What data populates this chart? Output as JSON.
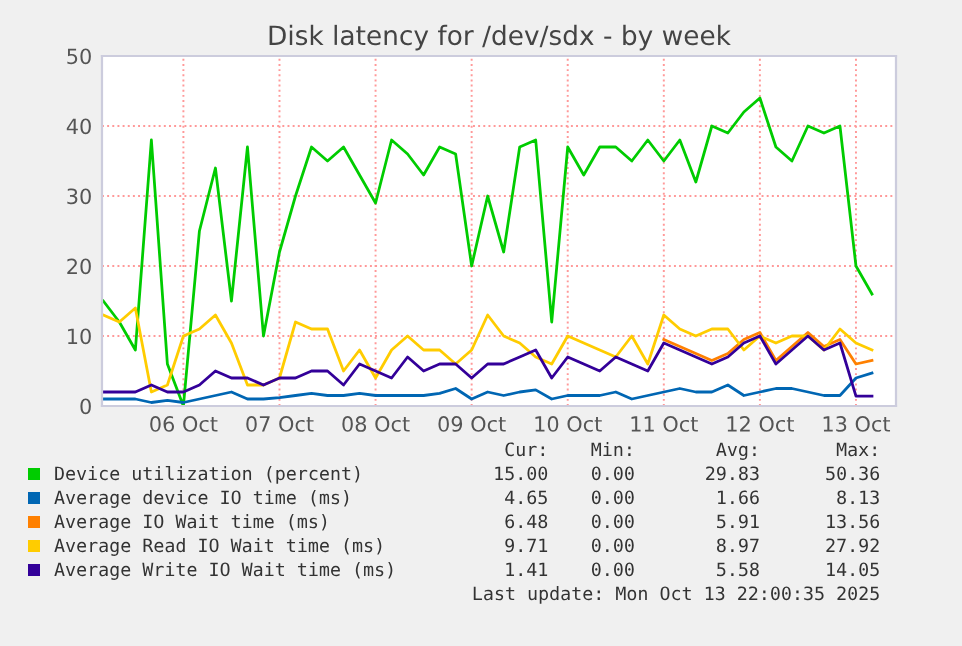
{
  "chart_data": {
    "type": "line",
    "title": "Disk latency for /dev/sdx - by week",
    "x": [
      "2025-10-05T16:00",
      "2025-10-05T20:00",
      "2025-10-06T00:00",
      "2025-10-06T04:00",
      "2025-10-06T08:00",
      "2025-10-06T12:00",
      "2025-10-06T16:00",
      "2025-10-06T20:00",
      "2025-10-07T00:00",
      "2025-10-07T04:00",
      "2025-10-07T08:00",
      "2025-10-07T12:00",
      "2025-10-07T16:00",
      "2025-10-07T20:00",
      "2025-10-08T00:00",
      "2025-10-08T04:00",
      "2025-10-08T08:00",
      "2025-10-08T12:00",
      "2025-10-08T16:00",
      "2025-10-08T20:00",
      "2025-10-09T00:00",
      "2025-10-09T04:00",
      "2025-10-09T08:00",
      "2025-10-09T12:00",
      "2025-10-09T16:00",
      "2025-10-09T20:00",
      "2025-10-10T00:00",
      "2025-10-10T04:00",
      "2025-10-10T08:00",
      "2025-10-10T12:00",
      "2025-10-10T16:00",
      "2025-10-10T20:00",
      "2025-10-11T00:00",
      "2025-10-11T04:00",
      "2025-10-11T08:00",
      "2025-10-11T12:00",
      "2025-10-11T16:00",
      "2025-10-11T20:00",
      "2025-10-12T00:00",
      "2025-10-12T04:00",
      "2025-10-12T08:00",
      "2025-10-12T12:00",
      "2025-10-12T16:00",
      "2025-10-12T20:00",
      "2025-10-13T00:00",
      "2025-10-13T04:00",
      "2025-10-13T08:00",
      "2025-10-13T12:00",
      "2025-10-13T16:00"
    ],
    "series": [
      {
        "name": "Device utilization (percent)",
        "color": "#00cc00",
        "values": [
          15,
          12,
          8,
          38,
          6,
          0,
          25,
          34,
          15,
          37,
          10,
          22,
          30,
          37,
          35,
          37,
          33,
          29,
          38,
          36,
          33,
          37,
          36,
          20,
          30,
          22,
          37,
          38,
          12,
          37,
          33,
          37,
          37,
          35,
          38,
          35,
          38,
          32,
          40,
          39,
          42,
          44,
          37,
          35,
          40,
          39,
          40,
          20,
          16
        ]
      },
      {
        "name": "Average device IO time (ms)",
        "color": "#0066b3",
        "values": [
          1,
          1,
          1,
          0.5,
          0.8,
          0.5,
          1,
          1.5,
          2,
          1,
          1,
          1.2,
          1.5,
          1.8,
          1.5,
          1.5,
          1.8,
          1.5,
          1.5,
          1.5,
          1.5,
          1.8,
          2.5,
          1,
          2,
          1.5,
          2,
          2.3,
          1,
          1.5,
          1.5,
          1.5,
          2,
          1,
          1.5,
          2,
          2.5,
          2,
          2,
          3,
          1.5,
          2,
          2.5,
          2.5,
          2,
          1.5,
          1.5,
          4,
          4.7
        ]
      },
      {
        "name": "Average IO Wait time (ms)",
        "color": "#ff8000",
        "values": [
          null,
          null,
          null,
          null,
          null,
          null,
          null,
          null,
          null,
          null,
          null,
          null,
          null,
          null,
          null,
          null,
          null,
          null,
          null,
          null,
          null,
          null,
          null,
          null,
          null,
          null,
          null,
          null,
          null,
          null,
          null,
          null,
          null,
          null,
          null,
          9.5,
          8.5,
          7.5,
          6.5,
          7.5,
          9.5,
          10.5,
          6.5,
          8.5,
          10.5,
          8.5,
          9.5,
          6,
          6.5
        ]
      },
      {
        "name": "Average Read IO Wait time (ms)",
        "color": "#ffcc00",
        "values": [
          13,
          12,
          14,
          2,
          3,
          10,
          11,
          13,
          9,
          3,
          3,
          4,
          12,
          11,
          11,
          5,
          8,
          4,
          8,
          10,
          8,
          8,
          6,
          8,
          13,
          10,
          9,
          7,
          6,
          10,
          9,
          8,
          7,
          10,
          6,
          13,
          11,
          10,
          11,
          11,
          8,
          10,
          9,
          10,
          10,
          8,
          11,
          9,
          8
        ]
      },
      {
        "name": "Average Write IO Wait time (ms)",
        "color": "#330099",
        "values": [
          2,
          2,
          2,
          3,
          2,
          2,
          3,
          5,
          4,
          4,
          3,
          4,
          4,
          5,
          5,
          3,
          6,
          5,
          4,
          7,
          5,
          6,
          6,
          4,
          6,
          6,
          7,
          8,
          4,
          7,
          6,
          5,
          7,
          6,
          5,
          9,
          8,
          7,
          6,
          7,
          9,
          10,
          6,
          8,
          10,
          8,
          9,
          1.4,
          1.4
        ]
      }
    ],
    "xlim": [
      "2025-10-05T15:40",
      "2025-10-13T22:00"
    ],
    "xticks": [
      {
        "value": "2025-10-06T12:00",
        "label": "06 Oct"
      },
      {
        "value": "2025-10-07T12:00",
        "label": "07 Oct"
      },
      {
        "value": "2025-10-08T12:00",
        "label": "08 Oct"
      },
      {
        "value": "2025-10-09T12:00",
        "label": "09 Oct"
      },
      {
        "value": "2025-10-10T12:00",
        "label": "10 Oct"
      },
      {
        "value": "2025-10-11T12:00",
        "label": "11 Oct"
      },
      {
        "value": "2025-10-12T12:00",
        "label": "12 Oct"
      },
      {
        "value": "2025-10-13T12:00",
        "label": "13 Oct"
      }
    ],
    "ylim": [
      0,
      50
    ],
    "yticks": [
      0,
      10,
      20,
      30,
      40,
      50
    ],
    "grid": true,
    "legend": "bottom",
    "marker": "none",
    "line_style": "solid",
    "annotations": [
      "Cur:",
      "Min:",
      "Avg:",
      "Max:",
      "15.00",
      "0.00",
      "29.83",
      "50.36",
      "4.65",
      "0.00",
      "1.66",
      "8.13",
      "6.48",
      "0.00",
      "5.91",
      "13.56",
      "9.71",
      "0.00",
      "8.97",
      "27.92",
      "1.41",
      "0.00",
      "5.58",
      "14.05",
      "Last update: Mon Oct 13 22:00:35 2025"
    ]
  }
}
